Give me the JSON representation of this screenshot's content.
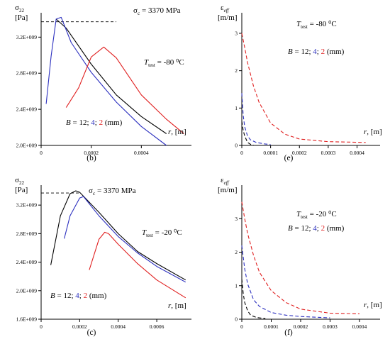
{
  "chart_data": [
    {
      "id": "b",
      "type": "line",
      "subfigure_label": "(b)",
      "ylabel_symbol": "σ",
      "ylabel_sub": "22",
      "ylabel_unit": "[Pa]",
      "xlabel_italic": "r",
      "xlabel_rest": ", [m]",
      "xlim": [
        0,
        0.0006
      ],
      "ylim": [
        2000000000.0,
        3470000000.0
      ],
      "xticks": [
        0,
        0.0002,
        0.0004
      ],
      "xtick_labels": [
        "0",
        "0.0002",
        "0.0004"
      ],
      "yticks": [
        2000000000.0,
        2400000000.0,
        2800000000.0,
        3200000000.0
      ],
      "ytick_labels": [
        "2.0E+009",
        "2.4E+009",
        "2.8E+009",
        "3.2E+009"
      ],
      "critical": {
        "value": 3370000000.0,
        "x_range": [
          0,
          0.0003
        ],
        "label_sym": "σ",
        "label_sub": "c",
        "label_text": " = 3370 MPa"
      },
      "temp_sym": "T",
      "temp_sub": "test",
      "temp_val": " = -80 ",
      "temp_unit": "⁰C",
      "legend": {
        "prefix_italic": "B",
        "prefix": " = ",
        "items": [
          "12",
          "4",
          "2"
        ],
        "suffix": " (mm)"
      },
      "series": [
        {
          "name": "12",
          "color": "#000000",
          "x": [
            6e-05,
            0.0001,
            0.0002,
            0.0003,
            0.0004,
            0.0005
          ],
          "y": [
            3400000000.0,
            3300000000.0,
            2900000000.0,
            2560000000.0,
            2320000000.0,
            2130000000.0
          ]
        },
        {
          "name": "4",
          "color": "#2b2fbf",
          "x": [
            2e-05,
            4e-05,
            6e-05,
            8e-05,
            0.00012,
            0.0002,
            0.0003,
            0.0004,
            0.0005
          ],
          "y": [
            2460000000.0,
            2990000000.0,
            3400000000.0,
            3420000000.0,
            3140000000.0,
            2810000000.0,
            2480000000.0,
            2210000000.0,
            2000000000.0
          ]
        },
        {
          "name": "2",
          "color": "#e02020",
          "x": [
            0.0001,
            0.00015,
            0.0002,
            0.00025,
            0.0003,
            0.0004,
            0.0005,
            0.00057
          ],
          "y": [
            2420000000.0,
            2640000000.0,
            2980000000.0,
            3090000000.0,
            2970000000.0,
            2560000000.0,
            2290000000.0,
            2130000000.0
          ]
        }
      ]
    },
    {
      "id": "e",
      "type": "line",
      "subfigure_label": "(e)",
      "ylabel_symbol": "ε",
      "ylabel_sub": "eff",
      "ylabel_unit": "[m/m]",
      "xlabel_italic": "r",
      "xlabel_rest": ", [m]",
      "xlim": [
        0,
        0.00048
      ],
      "ylim": [
        0,
        3.55
      ],
      "xticks": [
        0,
        0.0001,
        0.0002,
        0.0003,
        0.0004
      ],
      "xtick_labels": [
        "0",
        "0.0001",
        "0.0002",
        "0.0003",
        "0.0004"
      ],
      "yticks": [
        0,
        1,
        2,
        3
      ],
      "ytick_labels": [
        "0",
        "1",
        "2",
        "3"
      ],
      "temp_sym": "T",
      "temp_sub": "test",
      "temp_val": " = -80 ",
      "temp_unit": "⁰C",
      "legend": {
        "prefix_italic": "B",
        "prefix": " = ",
        "items": [
          "12",
          "4",
          "2"
        ],
        "suffix": " (mm)"
      },
      "series": [
        {
          "name": "12",
          "color": "#000000",
          "dashed": true,
          "x": [
            0,
            5e-06,
            1e-05,
            2e-05,
            3e-05,
            4e-05
          ],
          "y": [
            0.65,
            0.4,
            0.25,
            0.08,
            0.03,
            0.01
          ]
        },
        {
          "name": "4",
          "color": "#2b2fbf",
          "dashed": true,
          "x": [
            0,
            5e-06,
            1e-05,
            2e-05,
            3e-05,
            5e-05,
            8e-05,
            0.0001
          ],
          "y": [
            1.4,
            0.8,
            0.5,
            0.25,
            0.15,
            0.08,
            0.04,
            0.02
          ]
        },
        {
          "name": "2",
          "color": "#e02020",
          "dashed": true,
          "x": [
            0,
            1e-05,
            2e-05,
            4e-05,
            6e-05,
            0.0001,
            0.00015,
            0.0002,
            0.0003,
            0.00043
          ],
          "y": [
            3.0,
            2.62,
            2.22,
            1.6,
            1.15,
            0.6,
            0.3,
            0.17,
            0.1,
            0.08
          ]
        }
      ]
    },
    {
      "id": "c",
      "type": "line",
      "subfigure_label": "(c)",
      "ylabel_symbol": "σ",
      "ylabel_sub": "22",
      "ylabel_unit": "[Pa]",
      "xlabel_italic": "r",
      "xlabel_rest": ", [m]",
      "xlim": [
        0,
        0.00078
      ],
      "ylim": [
        1600000000.0,
        3480000000.0
      ],
      "xticks": [
        0,
        0.0002,
        0.0004,
        0.0006
      ],
      "xtick_labels": [
        "0",
        "0.0002",
        "0.0004",
        "0.0006"
      ],
      "yticks": [
        1600000000.0,
        2000000000.0,
        2400000000.0,
        2800000000.0,
        3200000000.0
      ],
      "ytick_labels": [
        "1.6E+009",
        "2.0E+009",
        "2.4E+009",
        "2.8E+009",
        "3.2E+009"
      ],
      "critical": {
        "value": 3370000000.0,
        "x_range": [
          0,
          0.0002
        ],
        "label_sym": "σ",
        "label_sub": "c",
        "label_text": " = 3370 MPa"
      },
      "temp_sym": "T",
      "temp_sub": "test",
      "temp_val": " = -20 ",
      "temp_unit": "⁰C",
      "legend": {
        "prefix_italic": "B",
        "prefix": " = ",
        "items": [
          "12",
          "4",
          "2"
        ],
        "suffix": " (mm)"
      },
      "series": [
        {
          "name": "12",
          "color": "#000000",
          "x": [
            5e-05,
            0.0001,
            0.00015,
            0.00018,
            0.0002,
            0.0003,
            0.0004,
            0.0005,
            0.0006,
            0.00075
          ],
          "y": [
            2360000000.0,
            3050000000.0,
            3360000000.0,
            3400000000.0,
            3380000000.0,
            3100000000.0,
            2800000000.0,
            2550000000.0,
            2380000000.0,
            2150000000.0
          ]
        },
        {
          "name": "4",
          "color": "#2b2fbf",
          "x": [
            0.00012,
            0.00015,
            0.0002,
            0.00022,
            0.0003,
            0.0004,
            0.0005,
            0.0006,
            0.00075
          ],
          "y": [
            2730000000.0,
            3050000000.0,
            3300000000.0,
            3320000000.0,
            3050000000.0,
            2760000000.0,
            2530000000.0,
            2340000000.0,
            2120000000.0
          ]
        },
        {
          "name": "2",
          "color": "#e02020",
          "x": [
            0.00025,
            0.0003,
            0.00033,
            0.00035,
            0.0004,
            0.0005,
            0.0006,
            0.00075
          ],
          "y": [
            2290000000.0,
            2720000000.0,
            2820000000.0,
            2800000000.0,
            2650000000.0,
            2380000000.0,
            2150000000.0,
            1900000000.0
          ]
        }
      ]
    },
    {
      "id": "f",
      "type": "line",
      "subfigure_label": "(f)",
      "ylabel_symbol": "ε",
      "ylabel_sub": "eff",
      "ylabel_unit": "[m/m]",
      "xlabel_italic": "r",
      "xlabel_rest": ", [m]",
      "xlim": [
        0,
        0.00047
      ],
      "ylim": [
        0,
        4.0
      ],
      "xticks": [
        0,
        0.0001,
        0.0002,
        0.0003,
        0.0004
      ],
      "xtick_labels": [
        "0",
        "0.0001",
        "0.0002",
        "0.0003",
        "0.0004"
      ],
      "yticks": [
        0,
        1,
        2,
        3
      ],
      "ytick_labels": [
        "0",
        "1",
        "2",
        "3"
      ],
      "temp_sym": "T",
      "temp_sub": "test",
      "temp_val": " = -20 ",
      "temp_unit": "⁰C",
      "legend": {
        "prefix_italic": "B",
        "prefix": " = ",
        "items": [
          "12",
          "4",
          "2"
        ],
        "suffix": " (mm)"
      },
      "series": [
        {
          "name": "12",
          "color": "#000000",
          "dashed": true,
          "x": [
            0,
            5e-06,
            1e-05,
            2e-05,
            3e-05,
            5e-05,
            8e-05
          ],
          "y": [
            1.2,
            0.75,
            0.5,
            0.25,
            0.12,
            0.05,
            0.02
          ]
        },
        {
          "name": "4",
          "color": "#2b2fbf",
          "dashed": true,
          "x": [
            0,
            1e-05,
            2e-05,
            4e-05,
            6e-05,
            0.0001,
            0.00015,
            0.0002,
            0.0003
          ],
          "y": [
            2.2,
            1.5,
            1.05,
            0.58,
            0.38,
            0.2,
            0.12,
            0.08,
            0.04
          ]
        },
        {
          "name": "2",
          "color": "#e02020",
          "dashed": true,
          "x": [
            0,
            1e-05,
            2e-05,
            4e-05,
            6e-05,
            0.0001,
            0.00015,
            0.0002,
            0.0003,
            0.0004
          ],
          "y": [
            3.5,
            3.0,
            2.55,
            1.9,
            1.4,
            0.85,
            0.5,
            0.3,
            0.18,
            0.16
          ]
        }
      ]
    }
  ]
}
